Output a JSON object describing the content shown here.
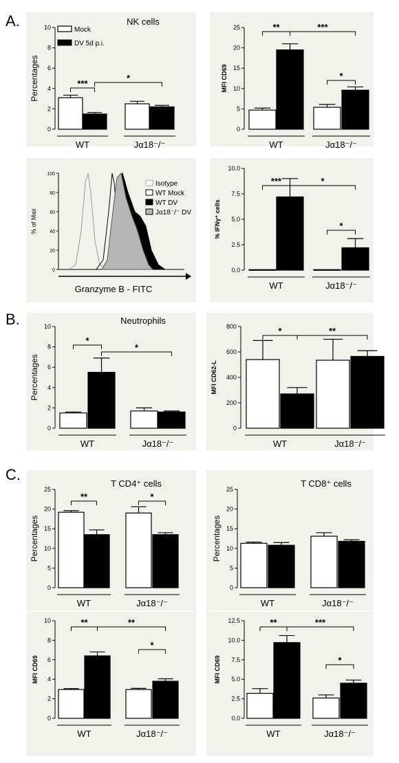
{
  "panel_labels": [
    "A.",
    "B.",
    "C."
  ],
  "legend": {
    "mock": "Mock",
    "dv": "DV 5d p.i."
  },
  "colors": {
    "mock_fill": "#ffffff",
    "dv_fill": "#000000",
    "panel_bg": "#f2f2ed",
    "axis": "#000000"
  },
  "chart_data": [
    {
      "id": "A1",
      "type": "bar",
      "title": "NK cells",
      "ylabel": "Percentages",
      "ylim": [
        0,
        10
      ],
      "yticks": [
        "0",
        "2",
        "4",
        "6",
        "8",
        "10"
      ],
      "groups": [
        "WT",
        "Jα18⁻/⁻"
      ],
      "series": [
        {
          "name": "Mock",
          "values": [
            3.1,
            2.5
          ],
          "errors": [
            0.25,
            0.25
          ]
        },
        {
          "name": "DV 5d p.i.",
          "values": [
            1.5,
            2.2
          ],
          "errors": [
            0.15,
            0.15
          ]
        }
      ],
      "annotations": [
        "***",
        "*"
      ]
    },
    {
      "id": "A2",
      "type": "bar",
      "title": "",
      "ylabel": "MFI CD69",
      "ylim": [
        0,
        25
      ],
      "yticks": [
        "0",
        "5",
        "10",
        "15",
        "20",
        "25"
      ],
      "groups": [
        "WT",
        "Jα18⁻/⁻"
      ],
      "series": [
        {
          "name": "Mock",
          "values": [
            4.7,
            5.4
          ],
          "errors": [
            0.5,
            0.7
          ]
        },
        {
          "name": "DV 5d p.i.",
          "values": [
            19.5,
            9.6
          ],
          "errors": [
            1.5,
            0.8
          ]
        }
      ],
      "annotations": [
        "**",
        "***",
        "*"
      ]
    },
    {
      "id": "A3",
      "type": "line",
      "title": "",
      "ylabel": "% of Max",
      "xlabel": "Granzyme B - FITC",
      "yticks": [
        "0",
        "20",
        "40",
        "60",
        "80",
        "100"
      ],
      "legend": [
        "Isotype",
        "WT Mock",
        "WT DV",
        "Jα18⁻/⁻ DV"
      ]
    },
    {
      "id": "A4",
      "type": "bar",
      "title": "",
      "ylabel": "% IFNγ⁺ cells",
      "ylim": [
        0,
        10
      ],
      "yticks": [
        "0.0",
        "2.5",
        "5.0",
        "7.5",
        "10.0"
      ],
      "groups": [
        "WT",
        "Jα18⁻/⁻"
      ],
      "series": [
        {
          "name": "Mock",
          "values": [
            0.05,
            0.05
          ],
          "errors": [
            0,
            0
          ]
        },
        {
          "name": "DV 5d p.i.",
          "values": [
            7.2,
            2.2
          ],
          "errors": [
            1.8,
            0.9
          ]
        }
      ],
      "annotations": [
        "***",
        "*",
        "*"
      ]
    },
    {
      "id": "B1",
      "type": "bar",
      "title": "Neutrophils",
      "ylabel": "Percentages",
      "ylim": [
        0,
        10
      ],
      "yticks": [
        "0",
        "2",
        "4",
        "6",
        "8",
        "10"
      ],
      "groups": [
        "WT",
        "Jα18⁻/⁻"
      ],
      "series": [
        {
          "name": "Mock",
          "values": [
            1.5,
            1.7
          ],
          "errors": [
            0.1,
            0.3
          ]
        },
        {
          "name": "DV 5d p.i.",
          "values": [
            5.5,
            1.6
          ],
          "errors": [
            1.4,
            0.1
          ]
        }
      ],
      "annotations": [
        "*",
        "*"
      ]
    },
    {
      "id": "B2",
      "type": "bar",
      "title": "",
      "ylabel": "MFI CD62-L",
      "ylim": [
        0,
        800
      ],
      "yticks": [
        "0",
        "200",
        "400",
        "600",
        "800"
      ],
      "groups": [
        "WT",
        "Jα18⁻/⁻"
      ],
      "series": [
        {
          "name": "Mock",
          "values": [
            540,
            535
          ],
          "errors": [
            150,
            165
          ]
        },
        {
          "name": "DV 5d p.i.",
          "values": [
            270,
            565
          ],
          "errors": [
            50,
            45
          ]
        }
      ],
      "annotations": [
        "*",
        "**"
      ]
    },
    {
      "id": "C1",
      "type": "bar",
      "title": "T CD4⁺ cells",
      "ylabel": "Percentages",
      "ylim": [
        0,
        25
      ],
      "yticks": [
        "0",
        "5",
        "10",
        "15",
        "20",
        "25"
      ],
      "groups": [
        "WT",
        "Jα18⁻/⁻"
      ],
      "series": [
        {
          "name": "Mock",
          "values": [
            19.2,
            19.0
          ],
          "errors": [
            0.4,
            1.6
          ]
        },
        {
          "name": "DV 5d p.i.",
          "values": [
            13.5,
            13.5
          ],
          "errors": [
            1.2,
            0.5
          ]
        }
      ],
      "annotations": [
        "**",
        "*"
      ]
    },
    {
      "id": "C2",
      "type": "bar",
      "title": "T CD8⁺ cells",
      "ylabel": "Percentages",
      "ylim": [
        0,
        25
      ],
      "yticks": [
        "0",
        "5",
        "10",
        "15",
        "20",
        "25"
      ],
      "groups": [
        "WT",
        "Jα18⁻/⁻"
      ],
      "series": [
        {
          "name": "Mock",
          "values": [
            11.3,
            13.1
          ],
          "errors": [
            0.3,
            0.9
          ]
        },
        {
          "name": "DV 5d p.i.",
          "values": [
            10.8,
            11.8
          ],
          "errors": [
            0.7,
            0.4
          ]
        }
      ],
      "annotations": []
    },
    {
      "id": "C3",
      "type": "bar",
      "title": "",
      "ylabel": "MFI CD69",
      "ylim": [
        0,
        10
      ],
      "yticks": [
        "0",
        "2",
        "4",
        "6",
        "8",
        "10"
      ],
      "groups": [
        "WT",
        "Jα18⁻/⁻"
      ],
      "series": [
        {
          "name": "Mock",
          "values": [
            2.95,
            2.95
          ],
          "errors": [
            0.1,
            0.12
          ]
        },
        {
          "name": "DV 5d p.i.",
          "values": [
            6.4,
            3.8
          ],
          "errors": [
            0.4,
            0.25
          ]
        }
      ],
      "annotations": [
        "**",
        "**",
        "*"
      ]
    },
    {
      "id": "C4",
      "type": "bar",
      "title": "",
      "ylabel": "MFI CD69",
      "ylim": [
        0,
        12.5
      ],
      "yticks": [
        "0.0",
        "2.5",
        "5.0",
        "7.5",
        "10.0",
        "12.5"
      ],
      "groups": [
        "WT",
        "Jα18⁻/⁻"
      ],
      "series": [
        {
          "name": "Mock",
          "values": [
            3.2,
            2.6
          ],
          "errors": [
            0.6,
            0.4
          ]
        },
        {
          "name": "DV 5d p.i.",
          "values": [
            9.7,
            4.5
          ],
          "errors": [
            0.9,
            0.4
          ]
        }
      ],
      "annotations": [
        "**",
        "***",
        "*"
      ]
    }
  ]
}
